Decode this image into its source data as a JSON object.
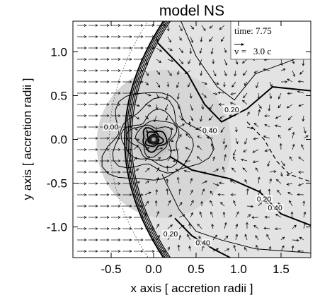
{
  "chart_data": {
    "type": "contour",
    "title": "model NS",
    "xlabel": "x axis [ accretion radii ]",
    "ylabel": "y axis [ accretion radii ]",
    "xlim": [
      -0.95,
      1.85
    ],
    "ylim": [
      -1.35,
      1.35
    ],
    "x_ticks": [
      "-0.5",
      "0.0",
      "0.5",
      "1.0",
      "1.5"
    ],
    "y_ticks": [
      "1.0",
      "0.5",
      "0.0",
      "-0.5",
      "-1.0"
    ],
    "x_tick_values": [
      -0.5,
      0.0,
      0.5,
      1.0,
      1.5
    ],
    "y_tick_values": [
      1.0,
      0.5,
      0.0,
      -0.5,
      -1.0
    ],
    "legend": {
      "time_label": "time: 7.75",
      "velocity_label": "v =   3.0 c",
      "position": "top-right"
    },
    "contour_labels": [
      {
        "text": "0.00",
        "x": -0.5,
        "y": 0.12
      },
      {
        "text": "0.40",
        "x": 0.66,
        "y": 0.08
      },
      {
        "text": "0.20",
        "x": 0.92,
        "y": 0.32
      },
      {
        "text": "0.20",
        "x": 1.3,
        "y": -0.7
      },
      {
        "text": "0.40",
        "x": 1.43,
        "y": -0.8
      },
      {
        "text": "0.20",
        "x": 0.2,
        "y": -1.1
      },
      {
        "text": "0.40",
        "x": 0.58,
        "y": -1.2
      }
    ],
    "accretor": {
      "x": 0.0,
      "y": 0.0
    },
    "bow_shock": {
      "note": "parabolic shock front ahead of accretor",
      "apex_x": -0.32,
      "curvature": 0.25
    },
    "flow": {
      "upstream_vx": 1.0,
      "upstream_vy": 0.0
    },
    "shading": {
      "region": "post-shock",
      "color": "#e3e3e3",
      "core_color": "#bfbfbf"
    },
    "grid": false
  }
}
